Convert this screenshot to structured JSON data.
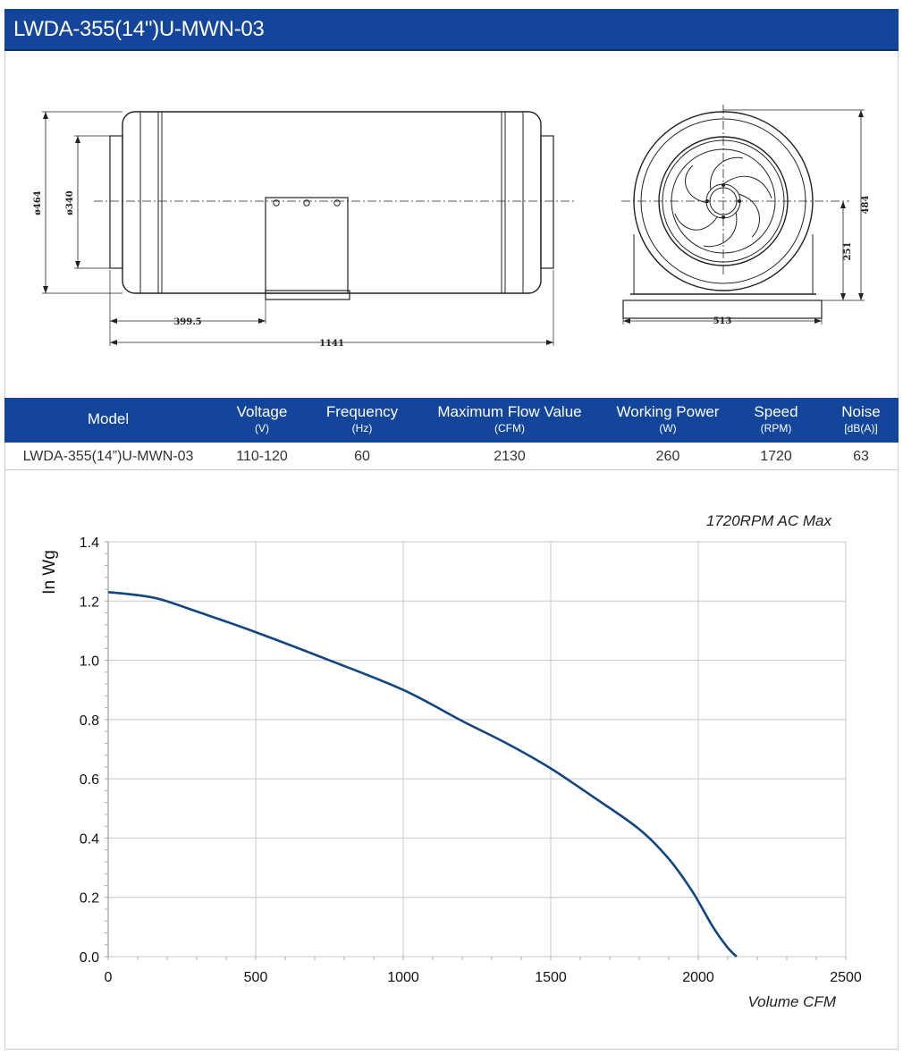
{
  "title": "LWDA-355(14\")U-MWN-03",
  "drawing": {
    "side_view": {
      "outer_dia": "ø464",
      "inner_dia": "ø340",
      "offset": "399.5",
      "length": "1141"
    },
    "front_view": {
      "height": "484",
      "center_height": "251",
      "width": "513"
    }
  },
  "spec_table": {
    "headers": [
      {
        "label": "Model",
        "unit": ""
      },
      {
        "label": "Voltage",
        "unit": "(V)"
      },
      {
        "label": "Frequency",
        "unit": "(Hz)"
      },
      {
        "label": "Maximum Flow Value",
        "unit": "(CFM)"
      },
      {
        "label": "Working Power",
        "unit": "(W)"
      },
      {
        "label": "Speed",
        "unit": "(RPM)"
      },
      {
        "label": "Noise",
        "unit": "[dB(A)]"
      }
    ],
    "row": {
      "model": "LWDA-355(14”)U-MWN-03",
      "voltage": "110-120",
      "frequency": "60",
      "max_flow": "2130",
      "power": "260",
      "speed": "1720",
      "noise": "63"
    }
  },
  "chart_data": {
    "type": "line",
    "title": "1720RPM AC Max",
    "xlabel": "Volume CFM",
    "ylabel": "In Wg",
    "xlim": [
      0,
      2500
    ],
    "ylim": [
      0,
      1.4
    ],
    "x_ticks": [
      0,
      500,
      1000,
      1500,
      2000,
      2500
    ],
    "y_ticks": [
      0.0,
      0.2,
      0.4,
      0.6,
      0.8,
      1.0,
      1.2,
      1.4
    ],
    "grid": true,
    "line_color": "#13467f",
    "series": [
      {
        "x": [
          0,
          100,
          180,
          300,
          500,
          750,
          1000,
          1200,
          1350,
          1500,
          1650,
          1800,
          1900,
          1980,
          2050,
          2100,
          2130
        ],
        "y": [
          1.23,
          1.22,
          1.205,
          1.165,
          1.095,
          1.0,
          0.9,
          0.795,
          0.72,
          0.635,
          0.535,
          0.43,
          0.33,
          0.22,
          0.1,
          0.03,
          0.0
        ]
      }
    ]
  },
  "colors": {
    "header_bg": "#13469b",
    "curve": "#13467f",
    "grid": "#c8c8c8"
  }
}
